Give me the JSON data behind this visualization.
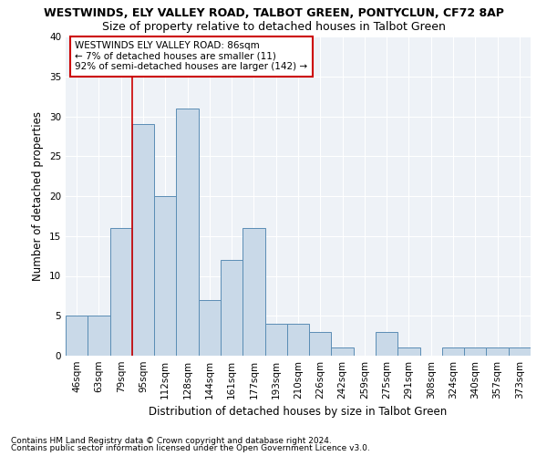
{
  "title1": "WESTWINDS, ELY VALLEY ROAD, TALBOT GREEN, PONTYCLUN, CF72 8AP",
  "title2": "Size of property relative to detached houses in Talbot Green",
  "xlabel": "Distribution of detached houses by size in Talbot Green",
  "ylabel": "Number of detached properties",
  "categories": [
    "46sqm",
    "63sqm",
    "79sqm",
    "95sqm",
    "112sqm",
    "128sqm",
    "144sqm",
    "161sqm",
    "177sqm",
    "193sqm",
    "210sqm",
    "226sqm",
    "242sqm",
    "259sqm",
    "275sqm",
    "291sqm",
    "308sqm",
    "324sqm",
    "340sqm",
    "357sqm",
    "373sqm"
  ],
  "values": [
    5,
    5,
    16,
    29,
    20,
    31,
    7,
    12,
    16,
    4,
    4,
    3,
    1,
    0,
    3,
    1,
    0,
    1,
    1,
    1,
    1
  ],
  "bar_color": "#c9d9e8",
  "bar_edge_color": "#5a8db5",
  "annotation_title": "WESTWINDS ELY VALLEY ROAD: 86sqm",
  "annotation_line1": "← 7% of detached houses are smaller (11)",
  "annotation_line2": "92% of semi-detached houses are larger (142) →",
  "annotation_box_color": "#ffffff",
  "annotation_box_edge": "#cc0000",
  "vline_color": "#cc0000",
  "vline_x": 2.5,
  "ylim": [
    0,
    40
  ],
  "yticks": [
    0,
    5,
    10,
    15,
    20,
    25,
    30,
    35,
    40
  ],
  "footnote1": "Contains HM Land Registry data © Crown copyright and database right 2024.",
  "footnote2": "Contains public sector information licensed under the Open Government Licence v3.0.",
  "title1_fontsize": 9,
  "title2_fontsize": 9,
  "xlabel_fontsize": 8.5,
  "ylabel_fontsize": 8.5,
  "tick_fontsize": 7.5,
  "footnote_fontsize": 6.5,
  "annotation_fontsize": 7.5,
  "bg_color": "#eef2f7"
}
